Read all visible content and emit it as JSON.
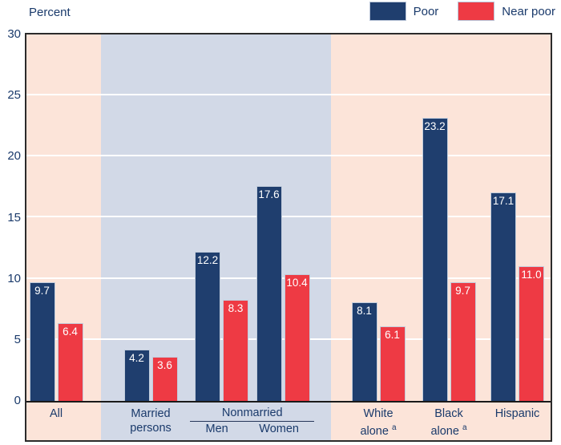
{
  "header": {
    "percent_label": "Percent"
  },
  "colors": {
    "poor": "#1f3e6e",
    "near_poor": "#ee3a44",
    "background_peach": "#fce4d9",
    "band_blue_gray": "#d2d9e7",
    "text_navy": "#1a3a6b",
    "gridline": "#ffffff",
    "border": "#2b2b2b"
  },
  "chart_data": {
    "type": "bar",
    "title": "",
    "ylabel": "Percent",
    "xlabel": "",
    "ylim": [
      0,
      30
    ],
    "yticks": [
      0,
      5,
      10,
      15,
      20,
      25,
      30
    ],
    "grid": "horizontal",
    "legend_position": "top-right",
    "legend": [
      {
        "name": "Poor",
        "color": "#1f3e6e"
      },
      {
        "name": "Near poor",
        "color": "#ee3a44"
      }
    ],
    "groups": [
      {
        "category": "All",
        "label_lines": [
          "All"
        ],
        "values": {
          "poor": 9.7,
          "near_poor": 6.4
        }
      },
      {
        "category": "Married persons",
        "label_lines": [
          "Married",
          "persons"
        ],
        "values": {
          "poor": 4.2,
          "near_poor": 3.6
        }
      },
      {
        "category": "Nonmarried Men",
        "label_lines": [
          "Men"
        ],
        "section": "Nonmarried",
        "values": {
          "poor": 12.2,
          "near_poor": 8.3
        }
      },
      {
        "category": "Nonmarried Women",
        "label_lines": [
          "Women"
        ],
        "section": "Nonmarried",
        "values": {
          "poor": 17.6,
          "near_poor": 10.4
        }
      },
      {
        "category": "White alone",
        "label_lines": [
          "White",
          "alone ^a"
        ],
        "values": {
          "poor": 8.1,
          "near_poor": 6.1
        }
      },
      {
        "category": "Black alone",
        "label_lines": [
          "Black",
          "alone ^a"
        ],
        "values": {
          "poor": 23.2,
          "near_poor": 9.7
        }
      },
      {
        "category": "Hispanic",
        "label_lines": [
          "Hispanic"
        ],
        "values": {
          "poor": 17.1,
          "near_poor": 11.0
        }
      }
    ],
    "section_labels": [
      {
        "text": "Nonmarried",
        "sub_labels": [
          "Men",
          "Women"
        ]
      }
    ],
    "value_label_format": "one decimal, white, inside bar top",
    "footnote_marker": "a"
  }
}
